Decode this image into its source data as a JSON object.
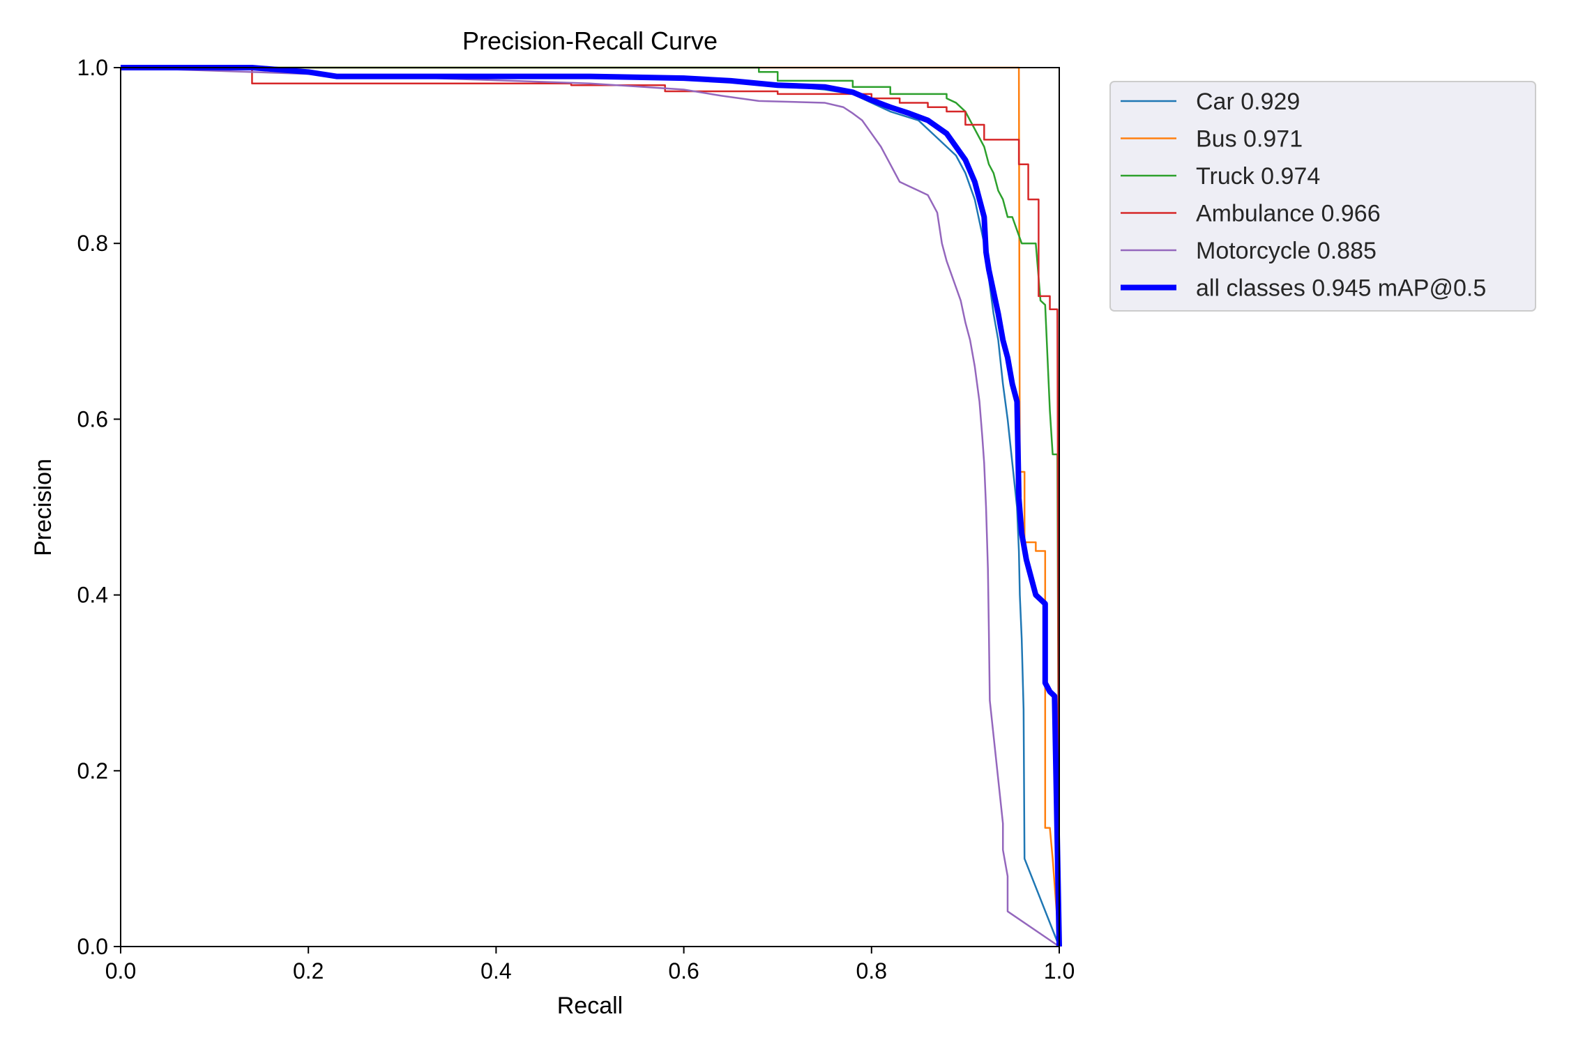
{
  "chart_data": {
    "type": "line",
    "title": "Precision-Recall Curve",
    "xlabel": "Recall",
    "ylabel": "Precision",
    "xlim": [
      0,
      1
    ],
    "ylim": [
      0,
      1
    ],
    "x_ticks": [
      "0.0",
      "0.2",
      "0.4",
      "0.6",
      "0.8",
      "1.0"
    ],
    "y_ticks": [
      "0.0",
      "0.2",
      "0.4",
      "0.6",
      "0.8",
      "1.0"
    ],
    "grid": false,
    "legend_position": "outside-upper-right",
    "series": [
      {
        "name": "Car 0.929",
        "color": "#1f77b4",
        "emphasis": false,
        "points": [
          [
            0,
            1
          ],
          [
            0.14,
            1
          ],
          [
            0.2,
            0.995
          ],
          [
            0.23,
            0.992
          ],
          [
            0.3,
            0.99
          ],
          [
            0.4,
            0.99
          ],
          [
            0.5,
            0.99
          ],
          [
            0.6,
            0.99
          ],
          [
            0.65,
            0.985
          ],
          [
            0.7,
            0.98
          ],
          [
            0.75,
            0.975
          ],
          [
            0.78,
            0.97
          ],
          [
            0.8,
            0.96
          ],
          [
            0.82,
            0.95
          ],
          [
            0.85,
            0.94
          ],
          [
            0.87,
            0.92
          ],
          [
            0.89,
            0.9
          ],
          [
            0.9,
            0.88
          ],
          [
            0.91,
            0.85
          ],
          [
            0.92,
            0.8
          ],
          [
            0.925,
            0.76
          ],
          [
            0.93,
            0.72
          ],
          [
            0.935,
            0.69
          ],
          [
            0.94,
            0.64
          ],
          [
            0.945,
            0.6
          ],
          [
            0.95,
            0.55
          ],
          [
            0.955,
            0.5
          ],
          [
            0.957,
            0.45
          ],
          [
            0.958,
            0.4
          ],
          [
            0.96,
            0.35
          ],
          [
            0.962,
            0.27
          ],
          [
            0.963,
            0.1
          ],
          [
            1.0,
            0.0
          ]
        ]
      },
      {
        "name": "Bus 0.971",
        "color": "#ff7f0e",
        "emphasis": false,
        "points": [
          [
            0,
            1
          ],
          [
            0.955,
            1
          ],
          [
            0.957,
            1
          ],
          [
            0.958,
            0.54
          ],
          [
            0.963,
            0.54
          ],
          [
            0.963,
            0.46
          ],
          [
            0.975,
            0.46
          ],
          [
            0.975,
            0.45
          ],
          [
            0.985,
            0.45
          ],
          [
            0.985,
            0.135
          ],
          [
            0.99,
            0.135
          ],
          [
            0.993,
            0.1
          ],
          [
            1.0,
            0.0
          ]
        ]
      },
      {
        "name": "Truck 0.974",
        "color": "#2ca02c",
        "emphasis": false,
        "points": [
          [
            0,
            1
          ],
          [
            0.68,
            1
          ],
          [
            0.68,
            0.995
          ],
          [
            0.7,
            0.995
          ],
          [
            0.7,
            0.985
          ],
          [
            0.78,
            0.985
          ],
          [
            0.78,
            0.978
          ],
          [
            0.82,
            0.978
          ],
          [
            0.82,
            0.97
          ],
          [
            0.88,
            0.97
          ],
          [
            0.88,
            0.965
          ],
          [
            0.89,
            0.96
          ],
          [
            0.9,
            0.95
          ],
          [
            0.91,
            0.93
          ],
          [
            0.92,
            0.91
          ],
          [
            0.925,
            0.89
          ],
          [
            0.93,
            0.88
          ],
          [
            0.935,
            0.86
          ],
          [
            0.94,
            0.85
          ],
          [
            0.945,
            0.83
          ],
          [
            0.95,
            0.83
          ],
          [
            0.96,
            0.8
          ],
          [
            0.975,
            0.8
          ],
          [
            0.98,
            0.735
          ],
          [
            0.985,
            0.73
          ],
          [
            0.99,
            0.61
          ],
          [
            0.993,
            0.56
          ],
          [
            0.998,
            0.56
          ],
          [
            1.0,
            0.0
          ]
        ]
      },
      {
        "name": "Ambulance 0.966",
        "color": "#d62728",
        "emphasis": false,
        "points": [
          [
            0,
            1
          ],
          [
            0.14,
            1
          ],
          [
            0.14,
            0.982
          ],
          [
            0.48,
            0.982
          ],
          [
            0.48,
            0.98
          ],
          [
            0.58,
            0.98
          ],
          [
            0.58,
            0.973
          ],
          [
            0.7,
            0.973
          ],
          [
            0.7,
            0.97
          ],
          [
            0.8,
            0.97
          ],
          [
            0.8,
            0.965
          ],
          [
            0.83,
            0.965
          ],
          [
            0.83,
            0.96
          ],
          [
            0.86,
            0.96
          ],
          [
            0.86,
            0.955
          ],
          [
            0.88,
            0.955
          ],
          [
            0.88,
            0.95
          ],
          [
            0.9,
            0.95
          ],
          [
            0.9,
            0.935
          ],
          [
            0.92,
            0.935
          ],
          [
            0.92,
            0.918
          ],
          [
            0.957,
            0.918
          ],
          [
            0.957,
            0.89
          ],
          [
            0.967,
            0.89
          ],
          [
            0.967,
            0.85
          ],
          [
            0.978,
            0.85
          ],
          [
            0.978,
            0.74
          ],
          [
            0.99,
            0.74
          ],
          [
            0.99,
            0.725
          ],
          [
            0.998,
            0.725
          ],
          [
            1.0,
            0.0
          ]
        ]
      },
      {
        "name": "Motorcycle 0.885",
        "color": "#9467bd",
        "emphasis": false,
        "points": [
          [
            0,
            1
          ],
          [
            0.5,
            0.982
          ],
          [
            0.6,
            0.975
          ],
          [
            0.64,
            0.968
          ],
          [
            0.68,
            0.962
          ],
          [
            0.75,
            0.96
          ],
          [
            0.77,
            0.955
          ],
          [
            0.78,
            0.948
          ],
          [
            0.79,
            0.94
          ],
          [
            0.8,
            0.925
          ],
          [
            0.81,
            0.91
          ],
          [
            0.82,
            0.89
          ],
          [
            0.83,
            0.87
          ],
          [
            0.84,
            0.865
          ],
          [
            0.85,
            0.86
          ],
          [
            0.86,
            0.855
          ],
          [
            0.87,
            0.835
          ],
          [
            0.875,
            0.8
          ],
          [
            0.88,
            0.78
          ],
          [
            0.885,
            0.765
          ],
          [
            0.89,
            0.75
          ],
          [
            0.895,
            0.735
          ],
          [
            0.9,
            0.71
          ],
          [
            0.905,
            0.69
          ],
          [
            0.91,
            0.66
          ],
          [
            0.915,
            0.62
          ],
          [
            0.918,
            0.58
          ],
          [
            0.92,
            0.55
          ],
          [
            0.922,
            0.5
          ],
          [
            0.924,
            0.43
          ],
          [
            0.925,
            0.36
          ],
          [
            0.926,
            0.28
          ],
          [
            0.93,
            0.24
          ],
          [
            0.935,
            0.19
          ],
          [
            0.94,
            0.14
          ],
          [
            0.94,
            0.11
          ],
          [
            0.945,
            0.08
          ],
          [
            0.945,
            0.04
          ],
          [
            1.0,
            0.0
          ]
        ]
      },
      {
        "name": "all classes 0.945 mAP@0.5",
        "color": "#0000ff",
        "emphasis": true,
        "points": [
          [
            0,
            1
          ],
          [
            0.14,
            1
          ],
          [
            0.2,
            0.995
          ],
          [
            0.23,
            0.99
          ],
          [
            0.3,
            0.99
          ],
          [
            0.4,
            0.99
          ],
          [
            0.5,
            0.99
          ],
          [
            0.6,
            0.988
          ],
          [
            0.65,
            0.985
          ],
          [
            0.7,
            0.98
          ],
          [
            0.75,
            0.978
          ],
          [
            0.78,
            0.972
          ],
          [
            0.8,
            0.963
          ],
          [
            0.82,
            0.955
          ],
          [
            0.84,
            0.948
          ],
          [
            0.86,
            0.94
          ],
          [
            0.88,
            0.925
          ],
          [
            0.89,
            0.91
          ],
          [
            0.9,
            0.895
          ],
          [
            0.91,
            0.87
          ],
          [
            0.915,
            0.85
          ],
          [
            0.92,
            0.83
          ],
          [
            0.922,
            0.79
          ],
          [
            0.925,
            0.77
          ],
          [
            0.93,
            0.745
          ],
          [
            0.935,
            0.72
          ],
          [
            0.94,
            0.69
          ],
          [
            0.945,
            0.67
          ],
          [
            0.95,
            0.64
          ],
          [
            0.955,
            0.62
          ],
          [
            0.957,
            0.51
          ],
          [
            0.96,
            0.47
          ],
          [
            0.965,
            0.44
          ],
          [
            0.975,
            0.4
          ],
          [
            0.985,
            0.39
          ],
          [
            0.985,
            0.3
          ],
          [
            0.99,
            0.29
          ],
          [
            0.995,
            0.285
          ],
          [
            1.0,
            0.0
          ]
        ]
      }
    ]
  }
}
